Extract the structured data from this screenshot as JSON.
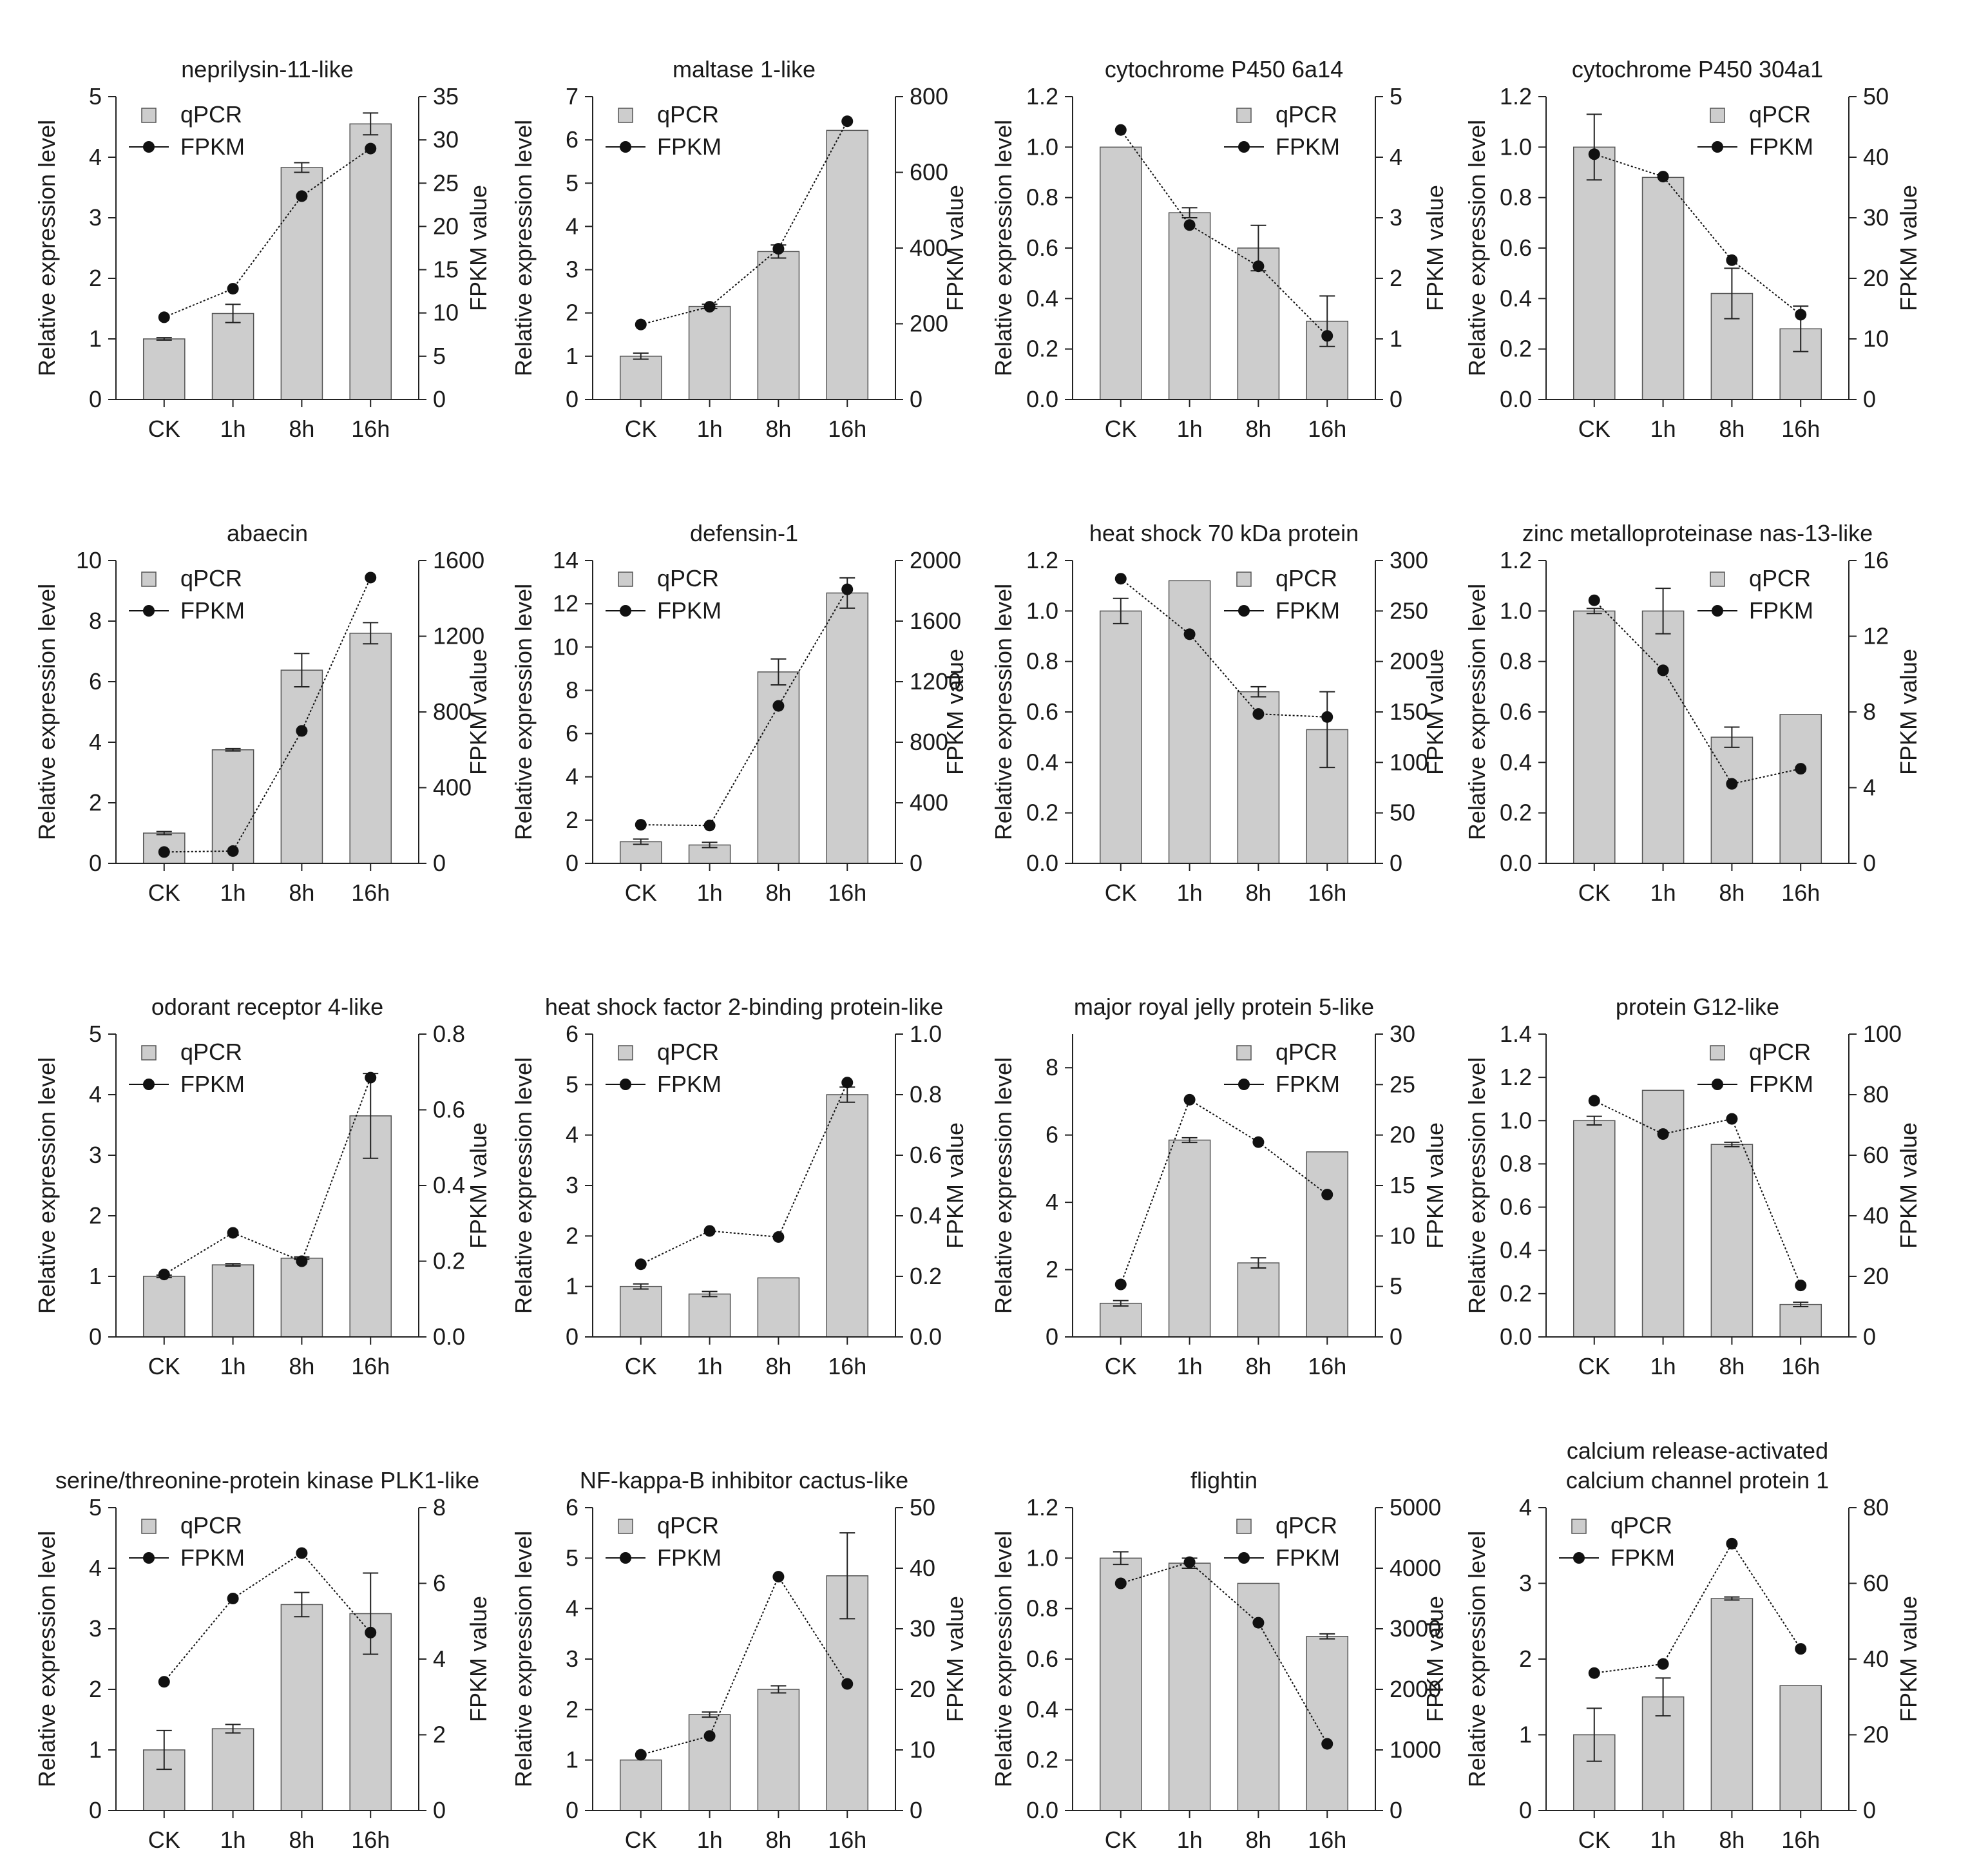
{
  "figure": {
    "categories": [
      "CK",
      "1h",
      "8h",
      "16h"
    ],
    "left_axis_label": "Relative expression level",
    "right_axis_label": "FPKM value",
    "legend_labels": [
      "qPCR",
      "FPKM"
    ],
    "colors": {
      "bar": "#cdcdcd",
      "bar_stroke": "#555555",
      "line": "#111111"
    }
  },
  "chart_data": [
    {
      "type": "bar",
      "title": [
        "neprilysin-11-like"
      ],
      "categories": [
        "CK",
        "1h",
        "8h",
        "16h"
      ],
      "series": [
        {
          "name": "qPCR",
          "axis": "left",
          "values": [
            1.0,
            1.42,
            3.83,
            4.55
          ],
          "errors": [
            0.02,
            0.15,
            0.08,
            0.18
          ]
        },
        {
          "name": "FPKM",
          "axis": "right",
          "type": "line",
          "values": [
            9.5,
            12.8,
            23.5,
            29.0
          ]
        }
      ],
      "ylim": [
        0,
        5
      ],
      "yticks": [
        0,
        1,
        2,
        3,
        4,
        5
      ],
      "y2lim": [
        0,
        35
      ],
      "y2ticks": [
        0,
        5,
        10,
        15,
        20,
        25,
        30,
        35
      ],
      "legend_position": "top-left"
    },
    {
      "type": "bar",
      "title": [
        "maltase 1-like"
      ],
      "categories": [
        "CK",
        "1h",
        "8h",
        "16h"
      ],
      "series": [
        {
          "name": "qPCR",
          "axis": "left",
          "values": [
            1.0,
            2.15,
            3.42,
            6.22
          ],
          "errors": [
            0.07,
            0.05,
            0.15,
            0.0
          ]
        },
        {
          "name": "FPKM",
          "axis": "right",
          "type": "line",
          "values": [
            198,
            245,
            398,
            735
          ]
        }
      ],
      "ylim": [
        0,
        7
      ],
      "yticks": [
        0,
        1,
        2,
        3,
        4,
        5,
        6,
        7
      ],
      "y2lim": [
        0,
        800
      ],
      "y2ticks": [
        0,
        200,
        400,
        600,
        800
      ],
      "legend_position": "top-left"
    },
    {
      "type": "bar",
      "title": [
        "cytochrome P450 6a14"
      ],
      "categories": [
        "CK",
        "1h",
        "8h",
        "16h"
      ],
      "series": [
        {
          "name": "qPCR",
          "axis": "left",
          "values": [
            1.0,
            0.74,
            0.6,
            0.31
          ],
          "errors": [
            0.0,
            0.02,
            0.09,
            0.1
          ]
        },
        {
          "name": "FPKM",
          "axis": "right",
          "type": "line",
          "values": [
            4.45,
            2.88,
            2.2,
            1.05
          ]
        }
      ],
      "ylim": [
        0,
        1.2
      ],
      "yticks": [
        0.0,
        0.2,
        0.4,
        0.6,
        0.8,
        1.0,
        1.2
      ],
      "y2lim": [
        0,
        5
      ],
      "y2ticks": [
        0,
        1,
        2,
        3,
        4,
        5
      ],
      "legend_position": "top-right"
    },
    {
      "type": "bar",
      "title": [
        "cytochrome P450 304a1"
      ],
      "categories": [
        "CK",
        "1h",
        "8h",
        "16h"
      ],
      "series": [
        {
          "name": "qPCR",
          "axis": "left",
          "values": [
            1.0,
            0.88,
            0.42,
            0.28
          ],
          "errors": [
            0.13,
            0.0,
            0.1,
            0.09
          ]
        },
        {
          "name": "FPKM",
          "axis": "right",
          "type": "line",
          "values": [
            40.5,
            36.8,
            23.0,
            14.0
          ]
        }
      ],
      "ylim": [
        0,
        1.2
      ],
      "yticks": [
        0.0,
        0.2,
        0.4,
        0.6,
        0.8,
        1.0,
        1.2
      ],
      "y2lim": [
        0,
        50
      ],
      "y2ticks": [
        0,
        10,
        20,
        30,
        40,
        50
      ],
      "legend_position": "top-right"
    },
    {
      "type": "bar",
      "title": [
        "abaecin"
      ],
      "categories": [
        "CK",
        "1h",
        "8h",
        "16h"
      ],
      "series": [
        {
          "name": "qPCR",
          "axis": "left",
          "values": [
            1.0,
            3.75,
            6.38,
            7.6
          ],
          "errors": [
            0.05,
            0.04,
            0.55,
            0.35
          ]
        },
        {
          "name": "FPKM",
          "axis": "right",
          "type": "line",
          "values": [
            60,
            65,
            700,
            1510
          ]
        }
      ],
      "ylim": [
        0,
        10
      ],
      "yticks": [
        0,
        2,
        4,
        6,
        8,
        10
      ],
      "y2lim": [
        0,
        1600
      ],
      "y2ticks": [
        0,
        400,
        800,
        1200,
        1600
      ],
      "legend_position": "top-left"
    },
    {
      "type": "bar",
      "title": [
        "defensin-1"
      ],
      "categories": [
        "CK",
        "1h",
        "8h",
        "16h"
      ],
      "series": [
        {
          "name": "qPCR",
          "axis": "left",
          "values": [
            1.0,
            0.85,
            8.85,
            12.5
          ],
          "errors": [
            0.12,
            0.12,
            0.6,
            0.7
          ]
        },
        {
          "name": "FPKM",
          "axis": "right",
          "type": "line",
          "values": [
            255,
            250,
            1040,
            1810
          ]
        }
      ],
      "ylim": [
        0,
        14
      ],
      "yticks": [
        0,
        2,
        4,
        6,
        8,
        10,
        12,
        14
      ],
      "y2lim": [
        0,
        2000
      ],
      "y2ticks": [
        0,
        400,
        800,
        1200,
        1600,
        2000
      ],
      "legend_position": "top-left"
    },
    {
      "type": "bar",
      "title": [
        "heat shock 70 kDa protein"
      ],
      "categories": [
        "CK",
        "1h",
        "8h",
        "16h"
      ],
      "series": [
        {
          "name": "qPCR",
          "axis": "left",
          "values": [
            1.0,
            1.12,
            0.68,
            0.53
          ],
          "errors": [
            0.05,
            0.0,
            0.02,
            0.15
          ]
        },
        {
          "name": "FPKM",
          "axis": "right",
          "type": "line",
          "values": [
            282,
            227,
            148,
            145
          ]
        }
      ],
      "ylim": [
        0,
        1.2
      ],
      "yticks": [
        0.0,
        0.2,
        0.4,
        0.6,
        0.8,
        1.0,
        1.2
      ],
      "y2lim": [
        0,
        300
      ],
      "y2ticks": [
        0,
        50,
        100,
        150,
        200,
        250,
        300
      ],
      "legend_position": "top-right"
    },
    {
      "type": "bar",
      "title": [
        "zinc metalloproteinase nas-13-like"
      ],
      "categories": [
        "CK",
        "1h",
        "8h",
        "16h"
      ],
      "series": [
        {
          "name": "qPCR",
          "axis": "left",
          "values": [
            1.0,
            1.0,
            0.5,
            0.59
          ],
          "errors": [
            0.01,
            0.09,
            0.04,
            0.0
          ]
        },
        {
          "name": "FPKM",
          "axis": "right",
          "type": "line",
          "values": [
            13.9,
            10.2,
            4.2,
            5.0
          ]
        }
      ],
      "ylim": [
        0,
        1.2
      ],
      "yticks": [
        0.0,
        0.2,
        0.4,
        0.6,
        0.8,
        1.0,
        1.2
      ],
      "y2lim": [
        0,
        16
      ],
      "y2ticks": [
        0,
        4,
        8,
        12,
        16
      ],
      "legend_position": "top-right"
    },
    {
      "type": "bar",
      "title": [
        "odorant receptor 4-like"
      ],
      "categories": [
        "CK",
        "1h",
        "8h",
        "16h"
      ],
      "series": [
        {
          "name": "qPCR",
          "axis": "left",
          "values": [
            1.0,
            1.19,
            1.3,
            3.65
          ],
          "errors": [
            0.02,
            0.02,
            0.02,
            0.7
          ]
        },
        {
          "name": "FPKM",
          "axis": "right",
          "type": "line",
          "values": [
            0.165,
            0.275,
            0.2,
            0.685
          ]
        }
      ],
      "ylim": [
        0,
        5
      ],
      "yticks": [
        0,
        1,
        2,
        3,
        4,
        5
      ],
      "y2lim": [
        0,
        0.8
      ],
      "y2ticks": [
        0.0,
        0.2,
        0.4,
        0.6,
        0.8
      ],
      "legend_position": "top-left"
    },
    {
      "type": "bar",
      "title": [
        "heat shock factor 2-binding protein-like"
      ],
      "categories": [
        "CK",
        "1h",
        "8h",
        "16h"
      ],
      "series": [
        {
          "name": "qPCR",
          "axis": "left",
          "values": [
            1.0,
            0.85,
            1.17,
            4.8
          ],
          "errors": [
            0.05,
            0.05,
            0.0,
            0.15
          ]
        },
        {
          "name": "FPKM",
          "axis": "right",
          "type": "line",
          "values": [
            0.24,
            0.35,
            0.33,
            0.84
          ]
        }
      ],
      "ylim": [
        0,
        6
      ],
      "yticks": [
        0,
        1,
        2,
        3,
        4,
        5,
        6
      ],
      "y2lim": [
        0,
        1.0
      ],
      "y2ticks": [
        0.0,
        0.2,
        0.4,
        0.6,
        0.8,
        1.0
      ],
      "legend_position": "top-left"
    },
    {
      "type": "bar",
      "title": [
        "major royal jelly protein 5-like"
      ],
      "categories": [
        "CK",
        "1h",
        "8h",
        "16h"
      ],
      "series": [
        {
          "name": "qPCR",
          "axis": "left",
          "values": [
            1.0,
            5.85,
            2.2,
            5.5
          ],
          "errors": [
            0.08,
            0.07,
            0.15,
            0.0
          ]
        },
        {
          "name": "FPKM",
          "axis": "right",
          "type": "line",
          "values": [
            5.2,
            23.5,
            19.3,
            14.1
          ]
        }
      ],
      "ylim": [
        0,
        9
      ],
      "yticks": [
        0,
        2,
        4,
        6,
        8
      ],
      "y2lim": [
        0,
        30
      ],
      "y2ticks": [
        0,
        5,
        10,
        15,
        20,
        25,
        30
      ],
      "legend_position": "top-right"
    },
    {
      "type": "bar",
      "title": [
        "protein G12-like"
      ],
      "categories": [
        "CK",
        "1h",
        "8h",
        "16h"
      ],
      "series": [
        {
          "name": "qPCR",
          "axis": "left",
          "values": [
            1.0,
            1.14,
            0.89,
            0.15
          ],
          "errors": [
            0.02,
            0.0,
            0.01,
            0.01
          ]
        },
        {
          "name": "FPKM",
          "axis": "right",
          "type": "line",
          "values": [
            78,
            67,
            72,
            17
          ]
        }
      ],
      "ylim": [
        0,
        1.4
      ],
      "yticks": [
        0.0,
        0.2,
        0.4,
        0.6,
        0.8,
        1.0,
        1.2,
        1.4
      ],
      "y2lim": [
        0,
        100
      ],
      "y2ticks": [
        0,
        20,
        40,
        60,
        80,
        100
      ],
      "legend_position": "top-right"
    },
    {
      "type": "bar",
      "title": [
        "serine/threonine-protein kinase PLK1-like"
      ],
      "categories": [
        "CK",
        "1h",
        "8h",
        "16h"
      ],
      "series": [
        {
          "name": "qPCR",
          "axis": "left",
          "values": [
            1.0,
            1.35,
            3.4,
            3.25
          ],
          "errors": [
            0.32,
            0.07,
            0.2,
            0.67
          ]
        },
        {
          "name": "FPKM",
          "axis": "right",
          "type": "line",
          "values": [
            3.4,
            5.6,
            6.8,
            4.7
          ]
        }
      ],
      "ylim": [
        0,
        5
      ],
      "yticks": [
        0,
        1,
        2,
        3,
        4,
        5
      ],
      "y2lim": [
        0,
        8
      ],
      "y2ticks": [
        0,
        2,
        4,
        6,
        8
      ],
      "legend_position": "top-left"
    },
    {
      "type": "bar",
      "title": [
        "NF-kappa-B inhibitor cactus-like"
      ],
      "categories": [
        "CK",
        "1h",
        "8h",
        "16h"
      ],
      "series": [
        {
          "name": "qPCR",
          "axis": "left",
          "values": [
            1.0,
            1.9,
            2.4,
            4.65
          ],
          "errors": [
            0.0,
            0.05,
            0.07,
            0.85
          ]
        },
        {
          "name": "FPKM",
          "axis": "right",
          "type": "line",
          "values": [
            9.2,
            12.3,
            38.6,
            20.9
          ]
        }
      ],
      "ylim": [
        0,
        6
      ],
      "yticks": [
        0,
        1,
        2,
        3,
        4,
        5,
        6
      ],
      "y2lim": [
        0,
        50
      ],
      "y2ticks": [
        0,
        10,
        20,
        30,
        40,
        50
      ],
      "legend_position": "top-left"
    },
    {
      "type": "bar",
      "title": [
        "flightin"
      ],
      "categories": [
        "CK",
        "1h",
        "8h",
        "16h"
      ],
      "series": [
        {
          "name": "qPCR",
          "axis": "left",
          "values": [
            1.0,
            0.98,
            0.9,
            0.69
          ],
          "errors": [
            0.025,
            0.02,
            0.0,
            0.01
          ]
        },
        {
          "name": "FPKM",
          "axis": "right",
          "type": "line",
          "values": [
            3750,
            4100,
            3100,
            1100
          ]
        }
      ],
      "ylim": [
        0,
        1.2
      ],
      "yticks": [
        0.0,
        0.2,
        0.4,
        0.6,
        0.8,
        1.0,
        1.2
      ],
      "y2lim": [
        0,
        5000
      ],
      "y2ticks": [
        0,
        1000,
        2000,
        3000,
        4000,
        5000
      ],
      "legend_position": "top-right"
    },
    {
      "type": "bar",
      "title": [
        "calcium release-activated",
        "calcium channel protein 1"
      ],
      "categories": [
        "CK",
        "1h",
        "8h",
        "16h"
      ],
      "series": [
        {
          "name": "qPCR",
          "axis": "left",
          "values": [
            1.0,
            1.5,
            2.8,
            1.65
          ],
          "errors": [
            0.35,
            0.25,
            0.02,
            0.0
          ]
        },
        {
          "name": "FPKM",
          "axis": "right",
          "type": "line",
          "values": [
            36.3,
            38.7,
            70.5,
            42.7
          ]
        }
      ],
      "ylim": [
        0,
        4
      ],
      "yticks": [
        0,
        1,
        2,
        3,
        4
      ],
      "y2lim": [
        0,
        80
      ],
      "y2ticks": [
        0,
        20,
        40,
        60,
        80
      ],
      "legend_position": "top-left"
    }
  ]
}
